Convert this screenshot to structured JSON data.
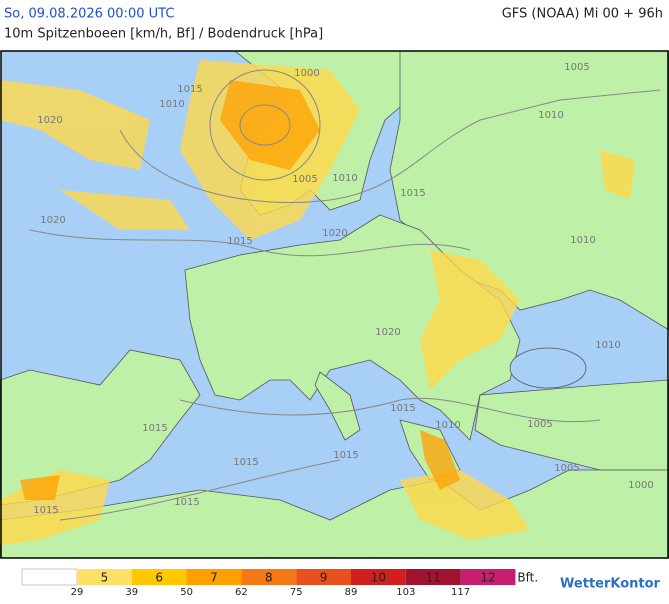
{
  "header": {
    "datetime": "So, 09.08.2026 00:00 UTC",
    "model": "GFS (NOAA) Mi 00 + 96h",
    "subtitle": "10m Spitzenboeen [km/h, Bf] / Bodendruck [hPa]"
  },
  "isobar_labels": [
    "1000",
    "1005",
    "1015",
    "1010",
    "1020",
    "1010",
    "1005",
    "1010",
    "1015",
    "1020",
    "1015",
    "1020",
    "1010",
    "1020",
    "1010",
    "1015",
    "1015",
    "1005",
    "1015",
    "1015",
    "1005",
    "1000",
    "1015",
    "1015",
    "1010"
  ],
  "legend": {
    "unit": "Bft.",
    "levels": [
      {
        "label": "5",
        "color": "#ffe066"
      },
      {
        "label": "6",
        "color": "#ffc800"
      },
      {
        "label": "7",
        "color": "#ffa000"
      },
      {
        "label": "8",
        "color": "#f57814"
      },
      {
        "label": "9",
        "color": "#e8501e"
      },
      {
        "label": "10",
        "color": "#d21e1e"
      },
      {
        "label": "11",
        "color": "#a01432"
      },
      {
        "label": "12",
        "color": "#c81e6e"
      }
    ],
    "thresholds": [
      29,
      39,
      50,
      62,
      75,
      89,
      103,
      117
    ]
  },
  "logo": "WetterKontor"
}
